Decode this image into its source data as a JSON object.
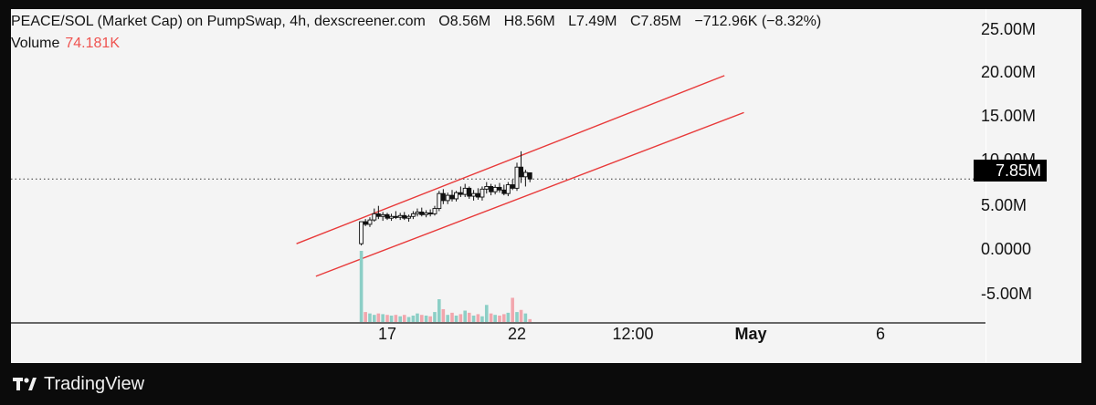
{
  "header": {
    "pair": "PEACE/SOL (Market Cap) on PumpSwap, 4h, dexscreener.com",
    "open": "O8.56M",
    "high": "H8.56M",
    "low": "L7.49M",
    "close": "C7.85M",
    "change": "−712.96K (−8.32%)"
  },
  "volume": {
    "label": "Volume",
    "value": "74.181K"
  },
  "price_label": "7.85M",
  "brand": "TradingView",
  "chart_data": {
    "type": "candlestick",
    "y_ticks": [
      "25.00M",
      "20.00M",
      "15.00M",
      "10.00M",
      "5.00M",
      "0.0000",
      "-5.00M"
    ],
    "y_tick_values": [
      25,
      20,
      15,
      10,
      5,
      0,
      -5
    ],
    "x_ticks": [
      "17",
      "22",
      "12:00",
      "May",
      "6"
    ],
    "ylim": [
      -8.5,
      27
    ],
    "current_price_M": 7.85,
    "channel_lines": [
      {
        "from": [
          13.5,
          0.5
        ],
        "to": [
          30.0,
          19.6
        ]
      },
      {
        "from": [
          14.25,
          -3.2
        ],
        "to": [
          30.75,
          15.4
        ]
      }
    ],
    "candles": [
      [
        16.0,
        0.5,
        3.0,
        0.3,
        3.0,
        "up"
      ],
      [
        16.16,
        3.0,
        3.3,
        2.5,
        2.7,
        "down"
      ],
      [
        16.33,
        2.7,
        3.5,
        2.4,
        3.2,
        "up"
      ],
      [
        16.5,
        3.2,
        4.5,
        3.0,
        3.9,
        "up"
      ],
      [
        16.66,
        3.9,
        4.8,
        3.3,
        3.6,
        "down"
      ],
      [
        16.83,
        3.6,
        4.1,
        3.1,
        3.8,
        "up"
      ],
      [
        17.0,
        3.8,
        4.0,
        3.2,
        3.4,
        "down"
      ],
      [
        17.16,
        3.4,
        3.9,
        3.1,
        3.6,
        "up"
      ],
      [
        17.33,
        3.6,
        4.2,
        3.3,
        3.5,
        "down"
      ],
      [
        17.5,
        3.5,
        4.0,
        3.2,
        3.7,
        "up"
      ],
      [
        17.66,
        3.7,
        4.1,
        3.2,
        3.4,
        "down"
      ],
      [
        17.83,
        3.4,
        3.8,
        3.0,
        3.6,
        "up"
      ],
      [
        18.0,
        3.6,
        4.2,
        3.3,
        3.9,
        "up"
      ],
      [
        18.16,
        3.9,
        4.5,
        3.6,
        4.1,
        "up"
      ],
      [
        18.33,
        4.1,
        4.6,
        3.6,
        3.8,
        "down"
      ],
      [
        18.5,
        3.8,
        4.3,
        3.5,
        4.0,
        "up"
      ],
      [
        18.66,
        4.0,
        4.4,
        3.6,
        3.9,
        "down"
      ],
      [
        18.83,
        3.9,
        4.8,
        3.7,
        4.5,
        "up"
      ],
      [
        19.0,
        4.5,
        6.5,
        4.2,
        6.2,
        "up"
      ],
      [
        19.16,
        6.2,
        6.7,
        5.0,
        5.4,
        "down"
      ],
      [
        19.33,
        5.4,
        6.3,
        5.0,
        6.0,
        "up"
      ],
      [
        19.5,
        6.0,
        6.6,
        5.3,
        5.6,
        "down"
      ],
      [
        19.66,
        5.6,
        6.5,
        5.3,
        6.3,
        "up"
      ],
      [
        19.83,
        6.3,
        7.0,
        5.8,
        6.1,
        "down"
      ],
      [
        20.0,
        6.1,
        7.3,
        5.8,
        6.8,
        "up"
      ],
      [
        20.16,
        6.8,
        7.0,
        5.6,
        5.9,
        "down"
      ],
      [
        20.33,
        5.9,
        6.6,
        5.4,
        6.2,
        "up"
      ],
      [
        20.5,
        6.2,
        6.8,
        5.5,
        5.8,
        "down"
      ],
      [
        20.66,
        5.8,
        7.0,
        5.4,
        6.7,
        "up"
      ],
      [
        20.83,
        6.7,
        7.5,
        6.2,
        7.0,
        "up"
      ],
      [
        21.0,
        7.0,
        7.3,
        6.0,
        6.4,
        "down"
      ],
      [
        21.16,
        6.4,
        7.2,
        6.1,
        6.9,
        "up"
      ],
      [
        21.33,
        6.9,
        7.4,
        6.3,
        6.6,
        "down"
      ],
      [
        21.5,
        6.6,
        7.2,
        6.0,
        6.2,
        "down"
      ],
      [
        21.66,
        6.2,
        7.5,
        5.9,
        7.2,
        "up"
      ],
      [
        21.83,
        7.2,
        7.8,
        6.6,
        6.8,
        "down"
      ],
      [
        22.0,
        6.8,
        9.7,
        6.5,
        9.2,
        "up"
      ],
      [
        22.16,
        9.2,
        11.0,
        7.4,
        8.1,
        "down"
      ],
      [
        22.33,
        8.1,
        8.9,
        7.0,
        8.6,
        "up"
      ],
      [
        22.5,
        8.56,
        8.56,
        7.49,
        7.85,
        "down"
      ]
    ],
    "volume": [
      [
        16.0,
        100,
        "up"
      ],
      [
        16.16,
        14,
        "down"
      ],
      [
        16.33,
        12,
        "up"
      ],
      [
        16.5,
        10,
        "up"
      ],
      [
        16.66,
        12,
        "down"
      ],
      [
        16.83,
        11,
        "up"
      ],
      [
        17.0,
        10,
        "down"
      ],
      [
        17.16,
        9,
        "up"
      ],
      [
        17.33,
        10,
        "down"
      ],
      [
        17.5,
        8,
        "up"
      ],
      [
        17.66,
        10,
        "down"
      ],
      [
        17.83,
        7,
        "up"
      ],
      [
        18.0,
        9,
        "up"
      ],
      [
        18.16,
        12,
        "up"
      ],
      [
        18.33,
        10,
        "down"
      ],
      [
        18.5,
        9,
        "up"
      ],
      [
        18.66,
        8,
        "down"
      ],
      [
        18.83,
        14,
        "up"
      ],
      [
        19.0,
        32,
        "up"
      ],
      [
        19.16,
        18,
        "down"
      ],
      [
        19.33,
        10,
        "up"
      ],
      [
        19.5,
        13,
        "down"
      ],
      [
        19.66,
        9,
        "up"
      ],
      [
        19.83,
        11,
        "down"
      ],
      [
        20.0,
        16,
        "up"
      ],
      [
        20.16,
        13,
        "down"
      ],
      [
        20.33,
        9,
        "up"
      ],
      [
        20.5,
        11,
        "down"
      ],
      [
        20.66,
        8,
        "up"
      ],
      [
        20.83,
        24,
        "up"
      ],
      [
        21.0,
        12,
        "down"
      ],
      [
        21.16,
        10,
        "up"
      ],
      [
        21.33,
        9,
        "down"
      ],
      [
        21.5,
        11,
        "down"
      ],
      [
        21.66,
        13,
        "up"
      ],
      [
        21.83,
        34,
        "down"
      ],
      [
        22.0,
        14,
        "up"
      ],
      [
        22.16,
        17,
        "down"
      ],
      [
        22.33,
        12,
        "up"
      ],
      [
        22.5,
        4,
        "down"
      ]
    ],
    "colors": {
      "up": "#26a69a",
      "down": "#ef5350",
      "volume_up": "#8ccfc6",
      "volume_down": "#f2a6ad",
      "candle": "#111111",
      "channel": "#e83a3a"
    }
  }
}
